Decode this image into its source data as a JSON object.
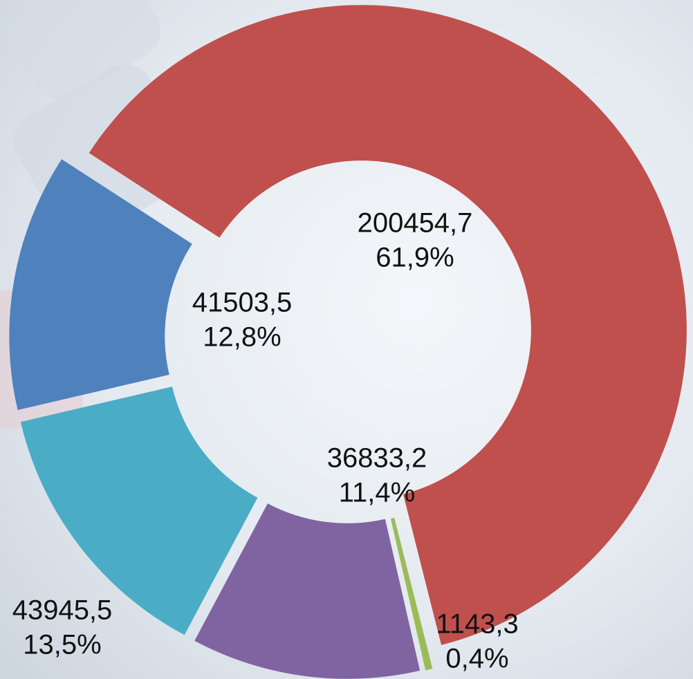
{
  "chart_data": {
    "type": "doughnut",
    "categories": [
      null,
      null,
      null,
      null,
      null
    ],
    "values": [
      200454.7,
      1143.3,
      36833.2,
      43945.5,
      41503.5
    ],
    "value_labels": [
      "200454,7",
      "1143,3",
      "36833,2",
      "43945,5",
      "41503,5"
    ],
    "percent_labels": [
      "61,9%",
      "0,4%",
      "11,4%",
      "13,5%",
      "12,8%"
    ],
    "colors": [
      "#c0504d",
      "#9bbb59",
      "#8064a2",
      "#4bacc6",
      "#4f81bd"
    ]
  }
}
